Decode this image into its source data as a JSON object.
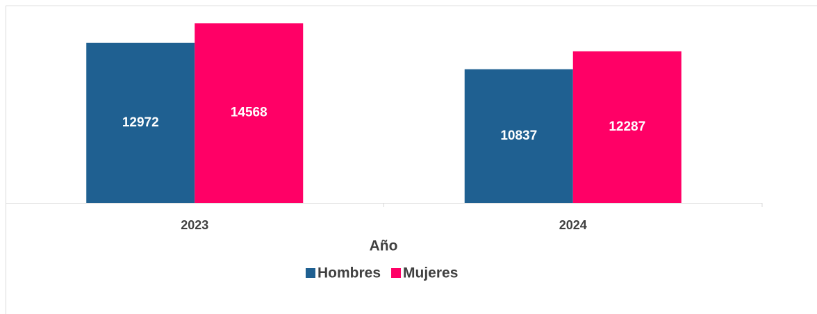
{
  "chart_data": {
    "type": "bar",
    "x_label": "Año",
    "categories": [
      "2023",
      "2024"
    ],
    "series": [
      {
        "name": "Hombres",
        "color": "#1f6091",
        "values": [
          12972,
          10837
        ]
      },
      {
        "name": "Mujeres",
        "color": "#ff0066",
        "values": [
          14568,
          12287
        ]
      }
    ],
    "ylim": [
      0,
      16000
    ],
    "legend": "bottom"
  }
}
